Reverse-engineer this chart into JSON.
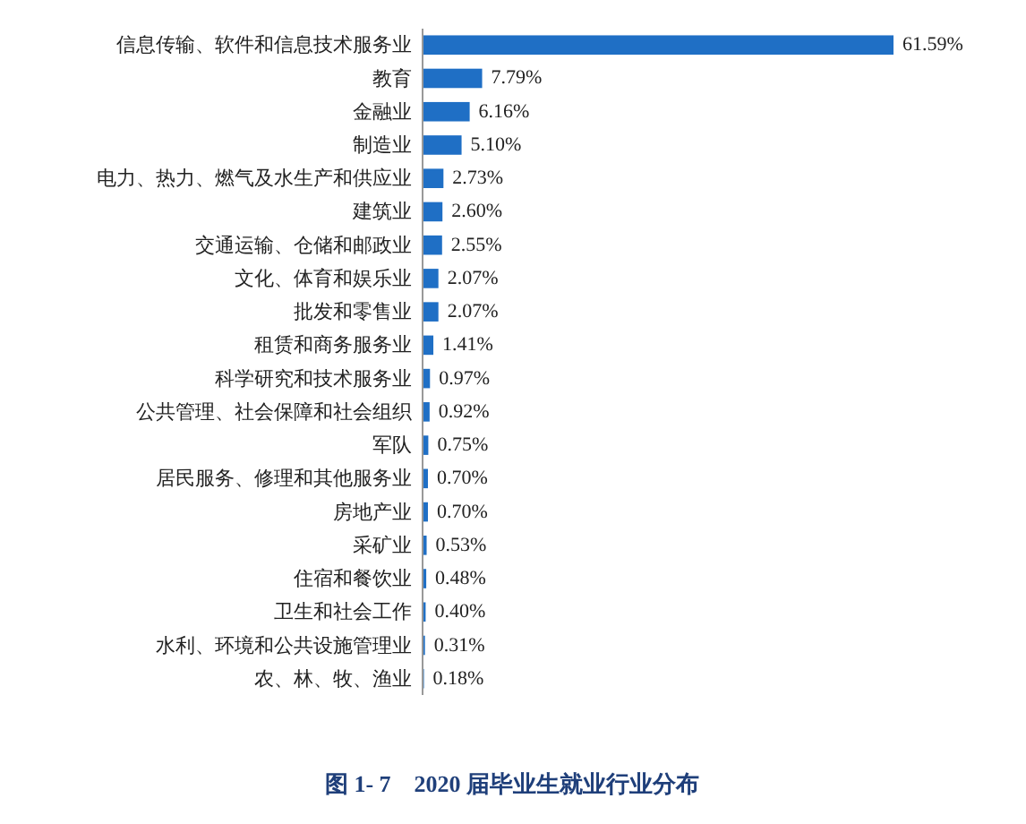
{
  "chart_data": {
    "type": "bar",
    "orientation": "horizontal",
    "title": "图 1- 7　2020 届毕业生就业行业分布",
    "categories": [
      "信息传输、软件和信息技术服务业",
      "教育",
      "金融业",
      "制造业",
      "电力、热力、燃气及水生产和供应业",
      "建筑业",
      "交通运输、仓储和邮政业",
      "文化、体育和娱乐业",
      "批发和零售业",
      "租赁和商务服务业",
      "科学研究和技术服务业",
      "公共管理、社会保障和社会组织",
      "军队",
      "居民服务、修理和其他服务业",
      "房地产业",
      "采矿业",
      "住宿和餐饮业",
      "卫生和社会工作",
      "水利、环境和公共设施管理业",
      "农、林、牧、渔业"
    ],
    "values": [
      61.59,
      7.79,
      6.16,
      5.1,
      2.73,
      2.6,
      2.55,
      2.07,
      2.07,
      1.41,
      0.97,
      0.92,
      0.75,
      0.7,
      0.7,
      0.53,
      0.48,
      0.4,
      0.31,
      0.18
    ],
    "value_labels": [
      "61.59%",
      "7.79%",
      "6.16%",
      "5.10%",
      "2.73%",
      "2.60%",
      "2.55%",
      "2.07%",
      "2.07%",
      "1.41%",
      "0.97%",
      "0.92%",
      "0.75%",
      "0.70%",
      "0.70%",
      "0.53%",
      "0.48%",
      "0.40%",
      "0.31%",
      "0.18%"
    ],
    "color": "#1f6fc5"
  }
}
